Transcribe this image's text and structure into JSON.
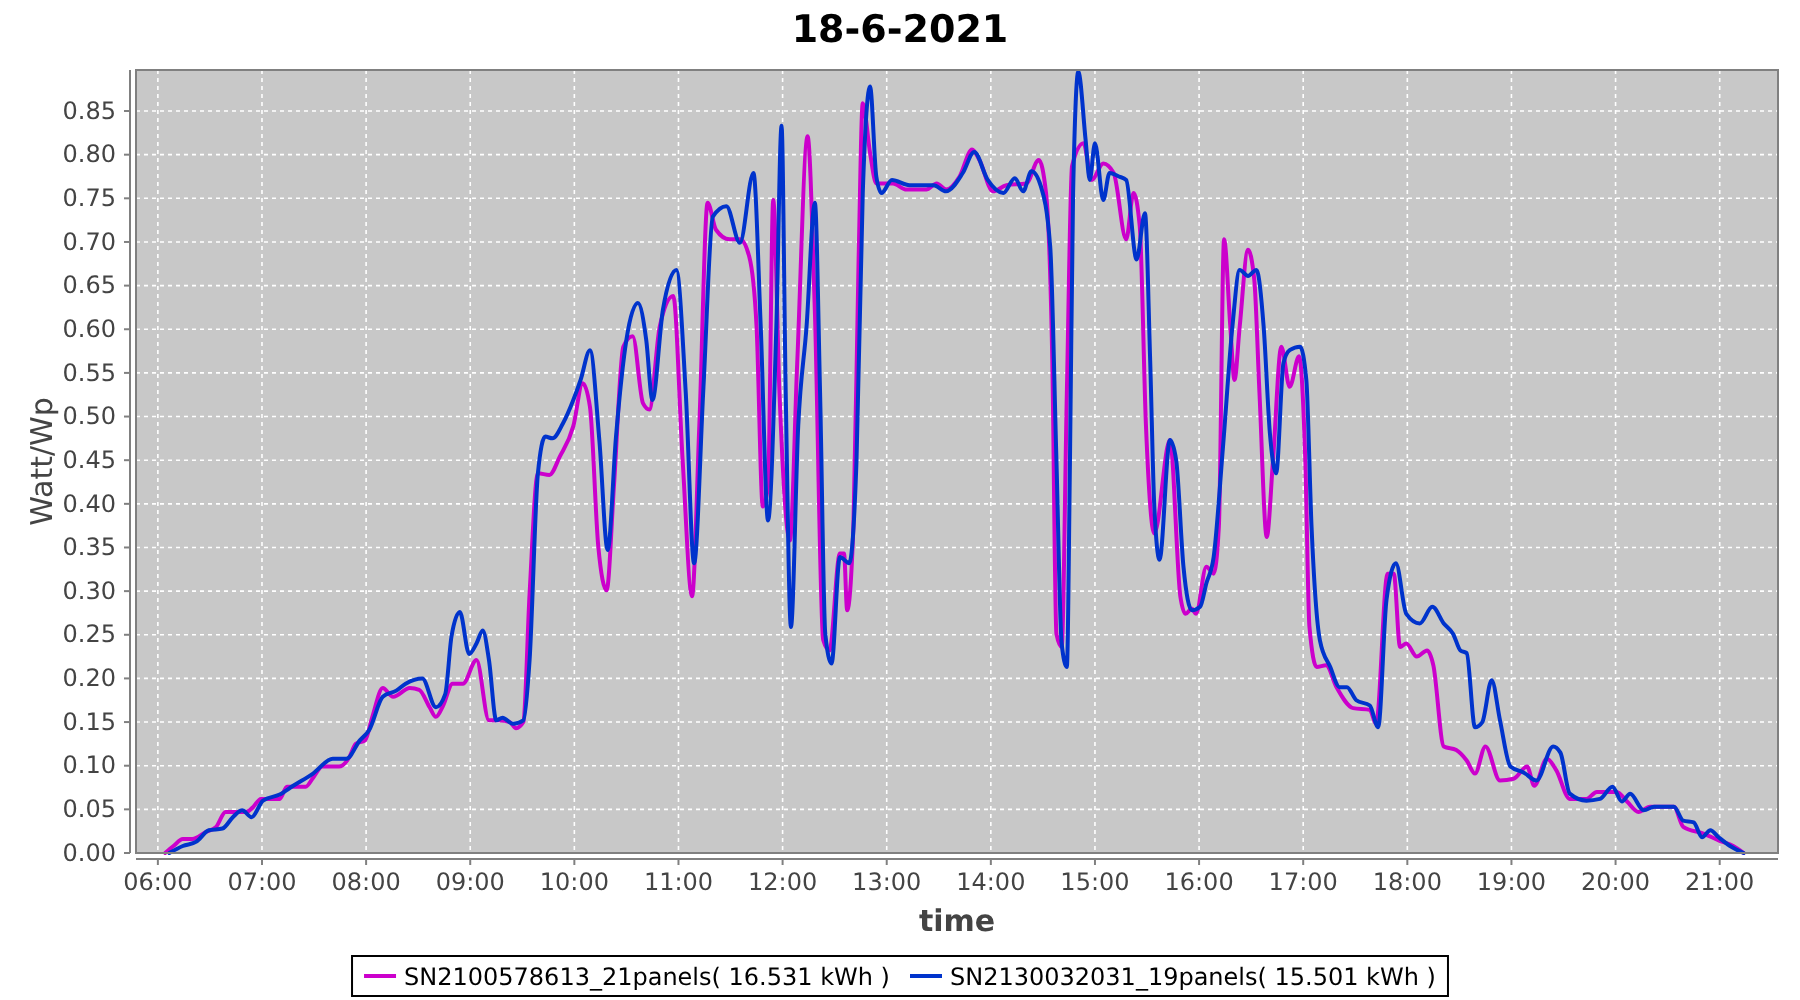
{
  "chart_data": {
    "type": "line",
    "title": "18-6-2021",
    "xlabel": "time",
    "ylabel": "Watt/Wp",
    "xlim": [
      5.79,
      21.56
    ],
    "ylim": [
      0,
      0.897
    ],
    "xticks": [
      {
        "value": 6,
        "label": "06:00"
      },
      {
        "value": 7,
        "label": "07:00"
      },
      {
        "value": 8,
        "label": "08:00"
      },
      {
        "value": 9,
        "label": "09:00"
      },
      {
        "value": 10,
        "label": "10:00"
      },
      {
        "value": 11,
        "label": "11:00"
      },
      {
        "value": 12,
        "label": "12:00"
      },
      {
        "value": 13,
        "label": "13:00"
      },
      {
        "value": 14,
        "label": "14:00"
      },
      {
        "value": 15,
        "label": "15:00"
      },
      {
        "value": 16,
        "label": "16:00"
      },
      {
        "value": 17,
        "label": "17:00"
      },
      {
        "value": 18,
        "label": "18:00"
      },
      {
        "value": 19,
        "label": "19:00"
      },
      {
        "value": 20,
        "label": "20:00"
      },
      {
        "value": 21,
        "label": "21:00"
      }
    ],
    "yticks": [
      {
        "value": 0,
        "label": "0.00"
      },
      0.05,
      {
        "value": 0.1,
        "label": "0.10"
      },
      0.15,
      {
        "value": 0.2,
        "label": "0.20"
      },
      0.25,
      {
        "value": 0.3,
        "label": "0.30"
      },
      0.35,
      {
        "value": 0.4,
        "label": "0.40"
      },
      0.45,
      {
        "value": 0.5,
        "label": "0.50"
      },
      0.55,
      {
        "value": 0.6,
        "label": "0.60"
      },
      0.65,
      {
        "value": 0.7,
        "label": "0.70"
      },
      0.75,
      {
        "value": 0.8,
        "label": "0.80"
      },
      0.85
    ],
    "grid": true,
    "legend": "bottom",
    "series": [
      {
        "name": "SN2100578613_21panels( 16.531 kWh )",
        "color": "#cc00cc",
        "x": [
          6.07,
          6.15,
          6.24,
          6.33,
          6.46,
          6.56,
          6.65,
          6.85,
          6.91,
          6.99,
          7.17,
          7.24,
          7.42,
          7.49,
          7.58,
          7.74,
          7.84,
          7.9,
          7.99,
          8.06,
          8.16,
          8.26,
          8.42,
          8.51,
          8.61,
          8.67,
          8.74,
          8.83,
          8.93,
          9.06,
          9.18,
          9.28,
          9.38,
          9.44,
          9.51,
          9.57,
          9.65,
          9.76,
          9.86,
          9.99,
          10.08,
          10.15,
          10.23,
          10.31,
          10.38,
          10.47,
          10.56,
          10.66,
          10.72,
          10.82,
          10.95,
          11.04,
          11.13,
          11.2,
          11.28,
          11.36,
          11.49,
          11.59,
          11.68,
          11.75,
          11.81,
          11.86,
          11.91,
          11.97,
          12.07,
          12.14,
          12.24,
          12.31,
          12.39,
          12.45,
          12.55,
          12.59,
          12.62,
          12.68,
          12.73,
          12.77,
          12.84,
          12.9,
          13.06,
          13.19,
          13.38,
          13.48,
          13.57,
          13.7,
          13.82,
          13.89,
          14.02,
          14.15,
          14.34,
          14.46,
          14.53,
          14.59,
          14.63,
          14.68,
          14.73,
          14.78,
          14.89,
          14.97,
          15.08,
          15.18,
          15.3,
          15.37,
          15.43,
          15.49,
          15.57,
          15.72,
          15.82,
          15.87,
          15.93,
          15.97,
          16.07,
          16.14,
          16.19,
          16.24,
          16.3,
          16.34,
          16.39,
          16.47,
          16.53,
          16.58,
          16.65,
          16.71,
          16.79,
          16.87,
          16.96,
          17.02,
          17.06,
          17.13,
          17.22,
          17.32,
          17.48,
          17.64,
          17.7,
          17.81,
          17.87,
          17.93,
          17.99,
          18.09,
          18.19,
          18.25,
          18.35,
          18.47,
          18.57,
          18.65,
          18.75,
          18.89,
          19.02,
          19.15,
          19.22,
          19.34,
          19.43,
          19.56,
          19.72,
          19.82,
          20.01,
          20.11,
          20.22,
          20.33,
          20.56,
          20.65,
          20.85,
          21.0,
          21.13,
          21.23
        ],
        "values": [
          0,
          0.008,
          0.016,
          0.016,
          0.024,
          0.03,
          0.047,
          0.047,
          0.052,
          0.062,
          0.062,
          0.076,
          0.076,
          0.086,
          0.099,
          0.099,
          0.11,
          0.125,
          0.129,
          0.156,
          0.189,
          0.179,
          0.189,
          0.187,
          0.167,
          0.156,
          0.169,
          0.194,
          0.194,
          0.221,
          0.152,
          0.152,
          0.15,
          0.143,
          0.15,
          0.297,
          0.435,
          0.433,
          0.454,
          0.489,
          0.538,
          0.511,
          0.351,
          0.301,
          0.42,
          0.58,
          0.592,
          0.515,
          0.508,
          0.603,
          0.638,
          0.45,
          0.294,
          0.489,
          0.745,
          0.714,
          0.703,
          0.703,
          0.683,
          0.603,
          0.397,
          0.42,
          0.748,
          0.527,
          0.358,
          0.56,
          0.821,
          0.62,
          0.244,
          0.232,
          0.343,
          0.343,
          0.278,
          0.374,
          0.68,
          0.859,
          0.802,
          0.767,
          0.767,
          0.76,
          0.76,
          0.767,
          0.76,
          0.775,
          0.806,
          0.794,
          0.758,
          0.765,
          0.767,
          0.794,
          0.756,
          0.565,
          0.251,
          0.236,
          0.527,
          0.787,
          0.813,
          0.771,
          0.79,
          0.779,
          0.703,
          0.756,
          0.718,
          0.489,
          0.366,
          0.473,
          0.294,
          0.274,
          0.28,
          0.274,
          0.328,
          0.32,
          0.374,
          0.703,
          0.603,
          0.542,
          0.603,
          0.691,
          0.657,
          0.527,
          0.362,
          0.45,
          0.58,
          0.534,
          0.569,
          0.45,
          0.259,
          0.213,
          0.215,
          0.19,
          0.166,
          0.164,
          0.148,
          0.32,
          0.32,
          0.236,
          0.24,
          0.225,
          0.232,
          0.215,
          0.122,
          0.118,
          0.106,
          0.091,
          0.122,
          0.083,
          0.085,
          0.099,
          0.077,
          0.108,
          0.095,
          0.062,
          0.062,
          0.07,
          0.07,
          0.059,
          0.047,
          0.053,
          0.053,
          0.03,
          0.022,
          0.014,
          0.008,
          0
        ]
      },
      {
        "name": "SN2130032031_19panels( 15.501 kWh )",
        "color": "#0033cc",
        "x": [
          6.11,
          6.24,
          6.37,
          6.49,
          6.62,
          6.72,
          6.81,
          6.9,
          7.01,
          7.17,
          7.3,
          7.49,
          7.68,
          7.81,
          7.94,
          8.03,
          8.16,
          8.29,
          8.38,
          8.54,
          8.67,
          8.76,
          8.82,
          8.9,
          8.99,
          9.06,
          9.12,
          9.18,
          9.25,
          9.31,
          9.41,
          9.51,
          9.57,
          9.65,
          9.72,
          9.79,
          9.89,
          9.99,
          10.06,
          10.15,
          10.24,
          10.32,
          10.4,
          10.5,
          10.61,
          10.69,
          10.75,
          10.85,
          10.98,
          11.07,
          11.15,
          11.24,
          11.33,
          11.46,
          11.59,
          11.72,
          11.79,
          11.86,
          11.94,
          11.99,
          12.03,
          12.08,
          12.15,
          12.23,
          12.31,
          12.36,
          12.41,
          12.47,
          12.55,
          12.64,
          12.71,
          12.77,
          12.84,
          12.9,
          12.95,
          13.05,
          13.22,
          13.45,
          13.57,
          13.73,
          13.84,
          13.97,
          14.12,
          14.23,
          14.31,
          14.39,
          14.48,
          14.57,
          14.63,
          14.68,
          14.73,
          14.76,
          14.79,
          14.84,
          14.91,
          14.95,
          15.0,
          15.08,
          15.14,
          15.23,
          15.3,
          15.4,
          15.48,
          15.53,
          15.57,
          15.62,
          15.72,
          15.78,
          15.85,
          15.93,
          16.01,
          16.07,
          16.14,
          16.23,
          16.32,
          16.39,
          16.47,
          16.55,
          16.62,
          16.68,
          16.74,
          16.81,
          16.87,
          16.97,
          17.03,
          17.08,
          17.16,
          17.26,
          17.35,
          17.42,
          17.51,
          17.64,
          17.72,
          17.8,
          17.89,
          17.99,
          18.12,
          18.24,
          18.35,
          18.44,
          18.51,
          18.57,
          18.65,
          18.72,
          18.81,
          18.89,
          18.99,
          19.12,
          19.24,
          19.4,
          19.47,
          19.56,
          19.72,
          19.85,
          19.97,
          20.06,
          20.14,
          20.27,
          20.37,
          20.56,
          20.65,
          20.75,
          20.83,
          20.91,
          20.99,
          21.1,
          21.23
        ],
        "values": [
          0,
          0.008,
          0.013,
          0.026,
          0.028,
          0.041,
          0.049,
          0.041,
          0.06,
          0.067,
          0.077,
          0.091,
          0.108,
          0.108,
          0.129,
          0.141,
          0.179,
          0.186,
          0.194,
          0.2,
          0.167,
          0.182,
          0.248,
          0.276,
          0.228,
          0.24,
          0.255,
          0.221,
          0.152,
          0.155,
          0.148,
          0.152,
          0.221,
          0.435,
          0.477,
          0.475,
          0.492,
          0.519,
          0.542,
          0.576,
          0.473,
          0.347,
          0.477,
          0.588,
          0.63,
          0.588,
          0.519,
          0.622,
          0.668,
          0.527,
          0.332,
          0.534,
          0.729,
          0.741,
          0.699,
          0.779,
          0.603,
          0.381,
          0.603,
          0.833,
          0.527,
          0.259,
          0.489,
          0.603,
          0.745,
          0.527,
          0.251,
          0.217,
          0.339,
          0.332,
          0.45,
          0.756,
          0.878,
          0.775,
          0.756,
          0.771,
          0.765,
          0.765,
          0.758,
          0.779,
          0.803,
          0.771,
          0.756,
          0.773,
          0.758,
          0.781,
          0.764,
          0.695,
          0.45,
          0.24,
          0.213,
          0.45,
          0.756,
          0.895,
          0.817,
          0.771,
          0.813,
          0.748,
          0.779,
          0.775,
          0.771,
          0.68,
          0.733,
          0.565,
          0.397,
          0.336,
          0.473,
          0.45,
          0.328,
          0.278,
          0.282,
          0.309,
          0.339,
          0.466,
          0.603,
          0.668,
          0.661,
          0.668,
          0.603,
          0.481,
          0.435,
          0.561,
          0.576,
          0.58,
          0.542,
          0.374,
          0.244,
          0.213,
          0.19,
          0.19,
          0.175,
          0.169,
          0.144,
          0.29,
          0.332,
          0.274,
          0.263,
          0.282,
          0.263,
          0.251,
          0.232,
          0.229,
          0.144,
          0.15,
          0.198,
          0.152,
          0.099,
          0.092,
          0.083,
          0.122,
          0.115,
          0.068,
          0.06,
          0.062,
          0.076,
          0.059,
          0.068,
          0.049,
          0.053,
          0.053,
          0.037,
          0.035,
          0.018,
          0.026,
          0.018,
          0.008,
          0
        ]
      }
    ]
  }
}
